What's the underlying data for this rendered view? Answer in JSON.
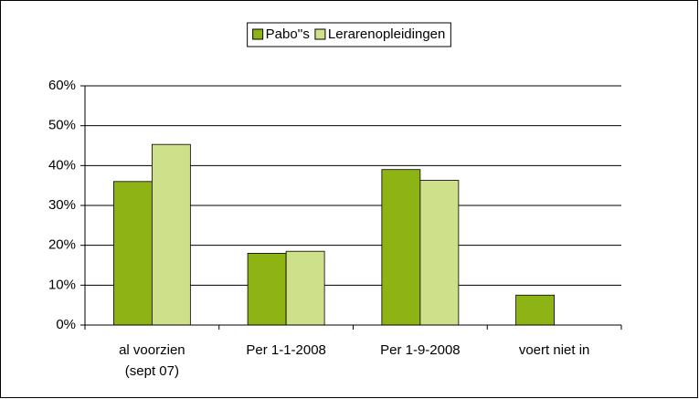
{
  "chart_data": {
    "type": "bar",
    "categories": [
      "al voorzien\n(sept 07)",
      "Per 1-1-2008",
      "Per 1-9-2008",
      "voert niet in"
    ],
    "series": [
      {
        "name": "Pabo''s",
        "color": "#8db414",
        "values": [
          36,
          18,
          39,
          7.5
        ]
      },
      {
        "name": "Lerarenopleidingen",
        "color": "#cfe08a",
        "values": [
          45.3,
          18.5,
          36.3,
          0
        ]
      }
    ],
    "ylim": [
      0,
      60
    ],
    "yticks": [
      {
        "value": 0,
        "label": "0%"
      },
      {
        "value": 10,
        "label": "10%"
      },
      {
        "value": 20,
        "label": "20%"
      },
      {
        "value": 30,
        "label": "30%"
      },
      {
        "value": 40,
        "label": "40%"
      },
      {
        "value": 50,
        "label": "50%"
      },
      {
        "value": 60,
        "label": "60%"
      }
    ],
    "grid": true,
    "legend": "top"
  }
}
